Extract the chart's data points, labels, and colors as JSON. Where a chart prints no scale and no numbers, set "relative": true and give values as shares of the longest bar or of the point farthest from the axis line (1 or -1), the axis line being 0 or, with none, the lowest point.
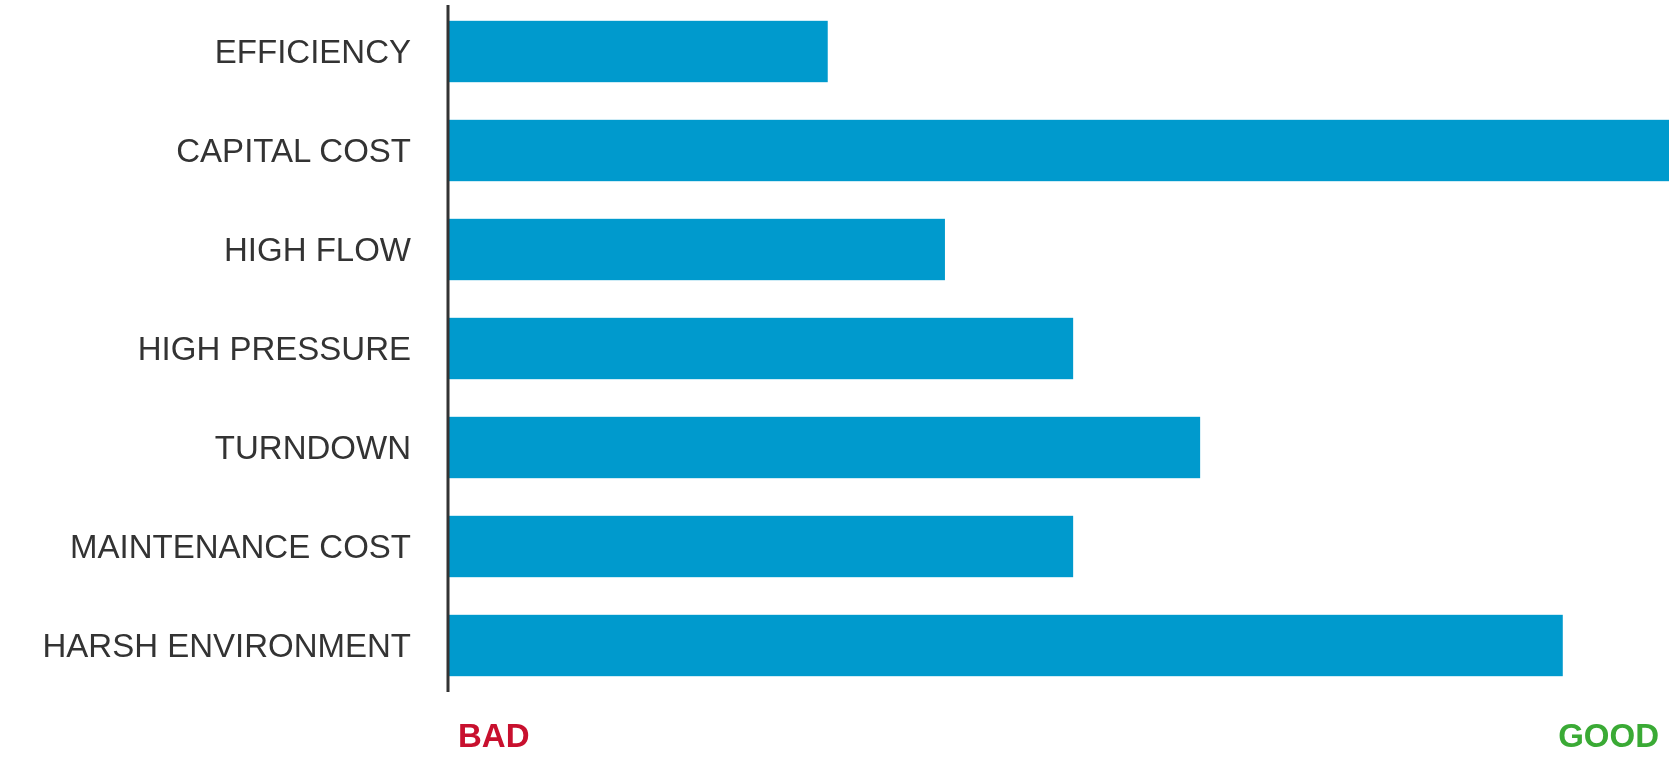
{
  "chart_data": {
    "type": "bar",
    "orientation": "horizontal",
    "relative": true,
    "categories": [
      "EFFICIENCY",
      "CAPITAL COST",
      "HIGH FLOW",
      "HIGH PRESSURE",
      "TURNDOWN",
      "MAINTENANCE COST",
      "HARSH ENVIRONMENT"
    ],
    "values": [
      0.311,
      1,
      0.407,
      0.512,
      0.616,
      0.512,
      0.913
    ],
    "color": "#009acd",
    "annotations": [
      "BAD",
      "GOOD"
    ]
  }
}
